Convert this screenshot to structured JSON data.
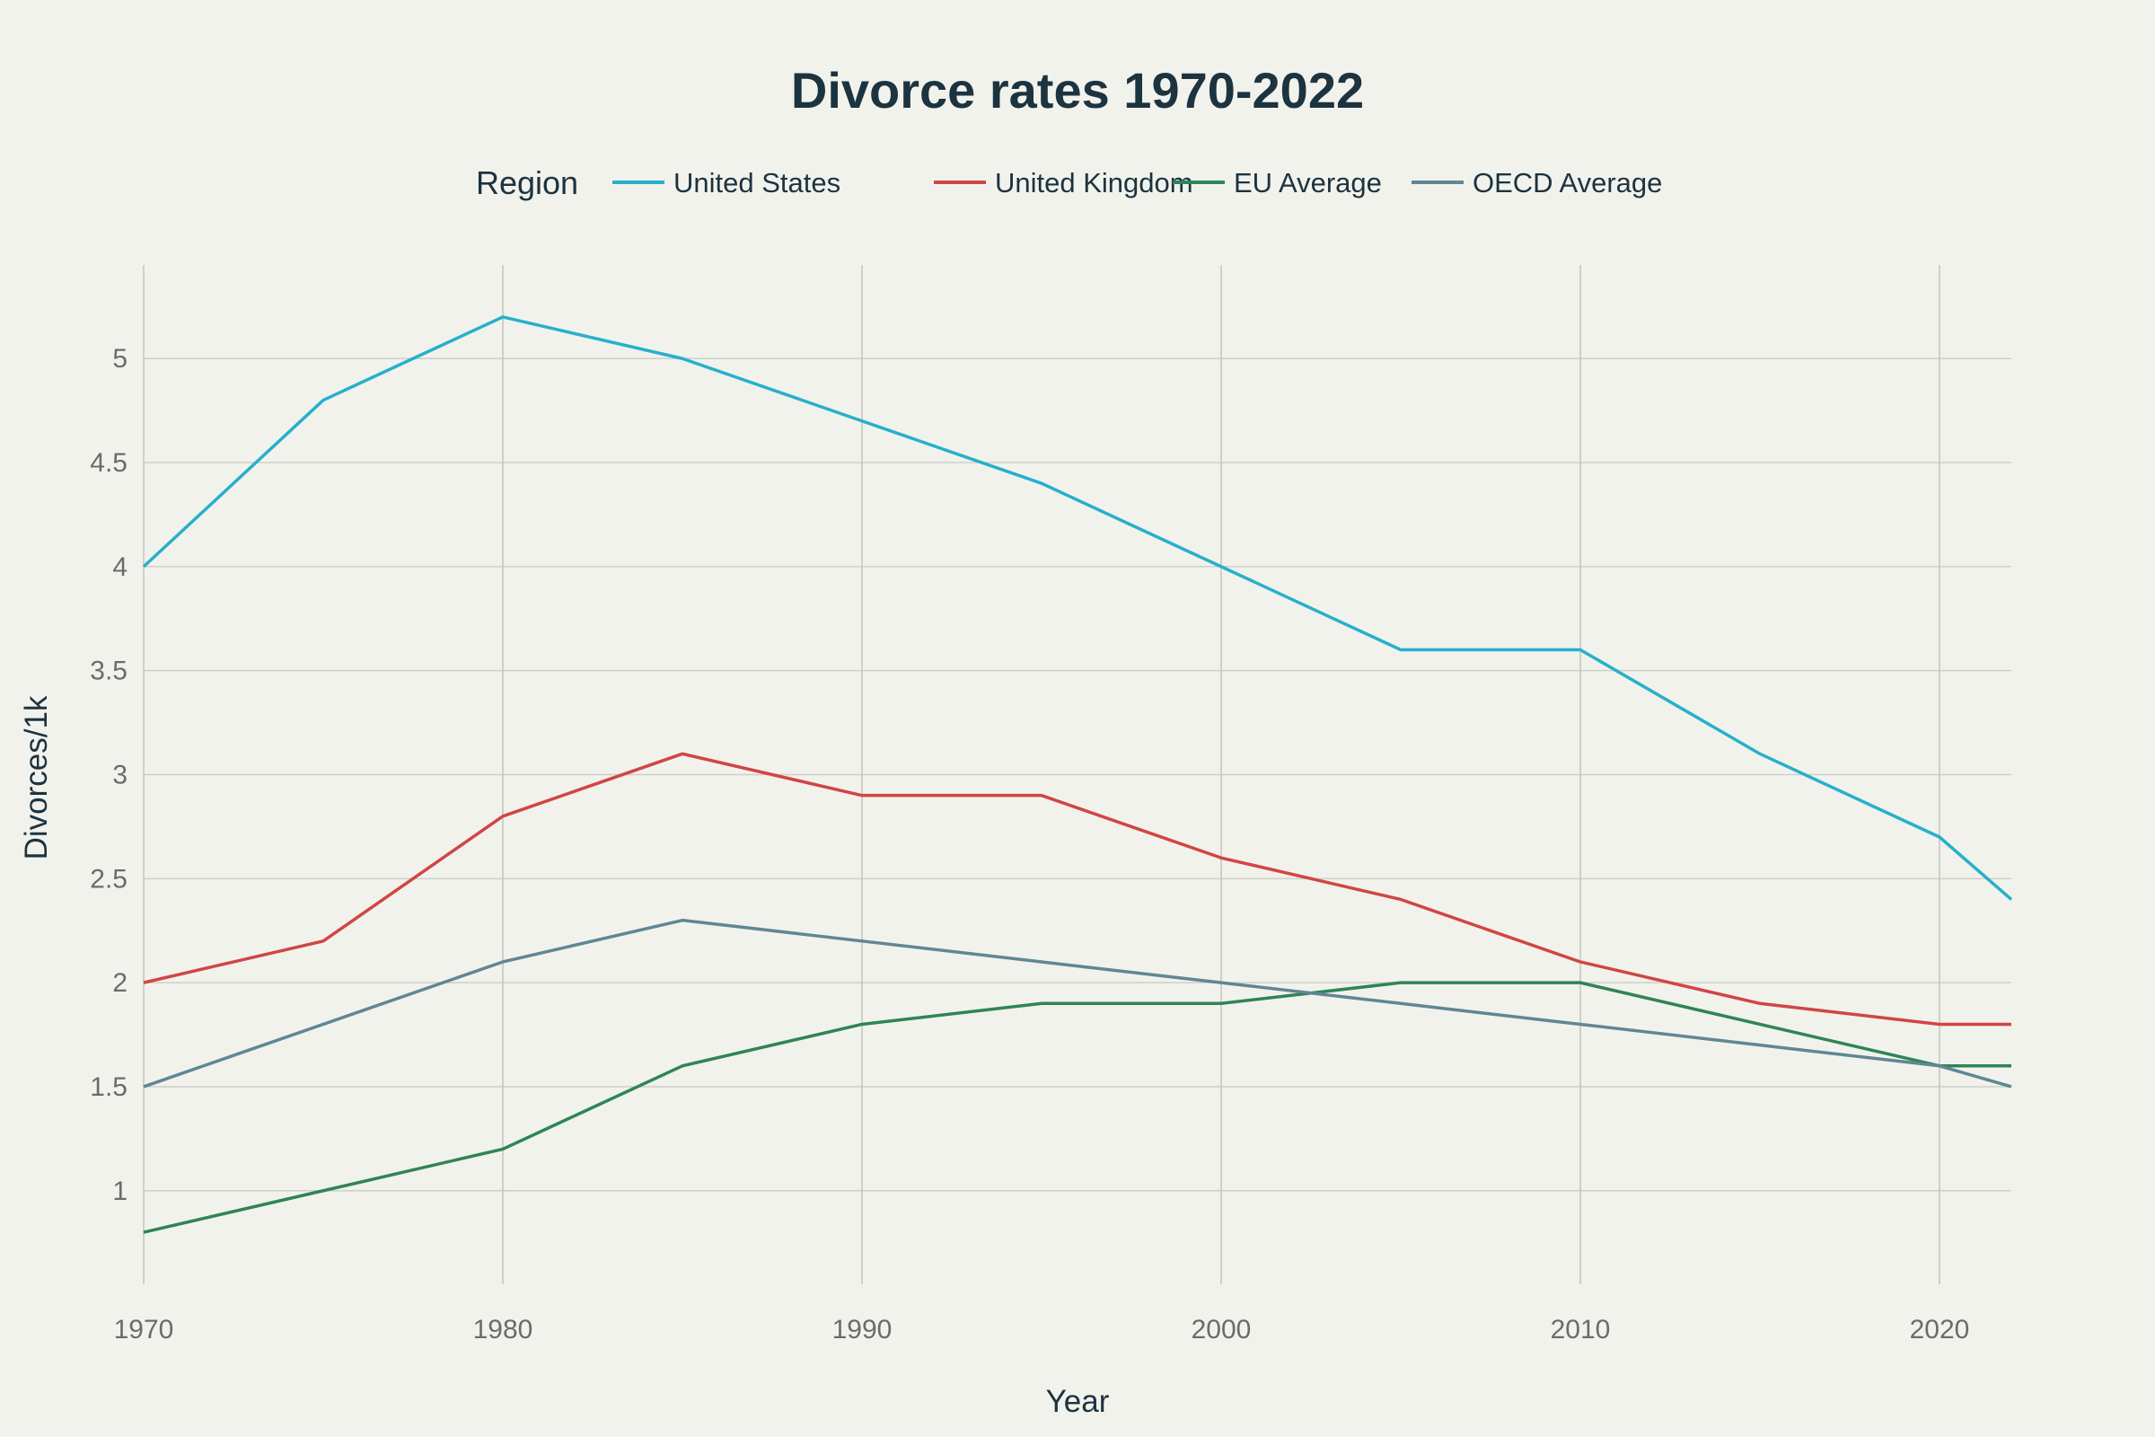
{
  "chart_data": {
    "type": "line",
    "title": "Divorce rates 1970-2022",
    "xlabel": "Year",
    "ylabel": "Divorces/1k",
    "x": [
      1970,
      1975,
      1980,
      1985,
      1990,
      1995,
      2000,
      2005,
      2010,
      2015,
      2020,
      2022
    ],
    "xlim": [
      1970,
      2022
    ],
    "ylim": [
      0.55,
      5.45
    ],
    "x_ticks": [
      1970,
      1980,
      1990,
      2000,
      2010,
      2020
    ],
    "x_tick_labels": [
      "1970",
      "1980",
      "1990",
      "2000",
      "2010",
      "2020"
    ],
    "y_ticks": [
      1,
      1.5,
      2,
      2.5,
      3,
      3.5,
      4,
      4.5,
      5
    ],
    "y_tick_labels": [
      "1",
      "1.5",
      "2",
      "2.5",
      "3",
      "3.5",
      "4",
      "4.5",
      "5"
    ],
    "grid": true,
    "legend": {
      "title": "Region",
      "position": "top"
    },
    "series": [
      {
        "name": "United States",
        "color": "#26b0cb",
        "values": [
          4.0,
          4.8,
          5.2,
          5.0,
          4.7,
          4.4,
          4.0,
          3.6,
          3.6,
          3.1,
          2.7,
          2.4
        ]
      },
      {
        "name": "United Kingdom",
        "color": "#d14545",
        "values": [
          2.0,
          2.2,
          2.8,
          3.1,
          2.9,
          2.9,
          2.6,
          2.4,
          2.1,
          1.9,
          1.8,
          1.8
        ]
      },
      {
        "name": "EU Average",
        "color": "#2e8555",
        "values": [
          0.8,
          1.0,
          1.2,
          1.6,
          1.8,
          1.9,
          1.9,
          2.0,
          2.0,
          1.8,
          1.6,
          1.6
        ]
      },
      {
        "name": "OECD Average",
        "color": "#5f8794",
        "values": [
          1.5,
          1.8,
          2.1,
          2.3,
          2.2,
          2.1,
          2.0,
          1.9,
          1.8,
          1.7,
          1.6,
          1.5
        ]
      }
    ]
  }
}
